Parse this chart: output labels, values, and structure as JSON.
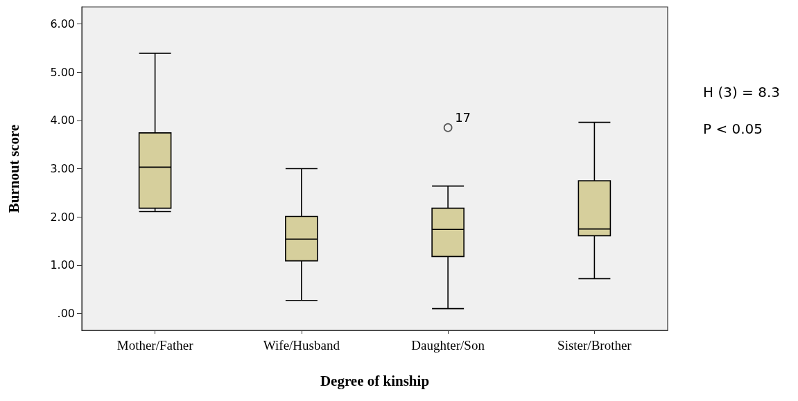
{
  "chart_data": {
    "type": "box",
    "xlabel": "Degree of kinship",
    "ylabel": "Burnout score",
    "categories": [
      "Mother/Father",
      "Wife/Husband",
      "Daughter/Son",
      "Sister/Brother"
    ],
    "series": [
      {
        "color": "#d6cf9c",
        "boxes": [
          {
            "low": 2.11,
            "q1": 2.18,
            "median": 3.03,
            "q3": 3.74,
            "high": 5.39
          },
          {
            "low": 0.27,
            "q1": 1.09,
            "median": 1.54,
            "q3": 2.01,
            "high": 3.0
          },
          {
            "low": 0.1,
            "q1": 1.18,
            "median": 1.74,
            "q3": 2.18,
            "high": 2.64,
            "outliers": [
              3.85
            ]
          },
          {
            "low": 0.72,
            "q1": 1.61,
            "median": 1.75,
            "q3": 2.75,
            "high": 3.96
          }
        ]
      }
    ],
    "ylim": [
      -0.35,
      6.35
    ],
    "yticks": [
      {
        "value": 0,
        "label": ".00"
      },
      {
        "value": 1,
        "label": "1.00"
      },
      {
        "value": 2,
        "label": "2.00"
      },
      {
        "value": 3,
        "label": "3.00"
      },
      {
        "value": 4,
        "label": "4.00"
      },
      {
        "value": 5,
        "label": "5.00"
      },
      {
        "value": 6,
        "label": "6.00"
      }
    ],
    "grid": false,
    "annotations": [
      "17",
      "H (3) = 8.3",
      "P < 0.05"
    ]
  }
}
